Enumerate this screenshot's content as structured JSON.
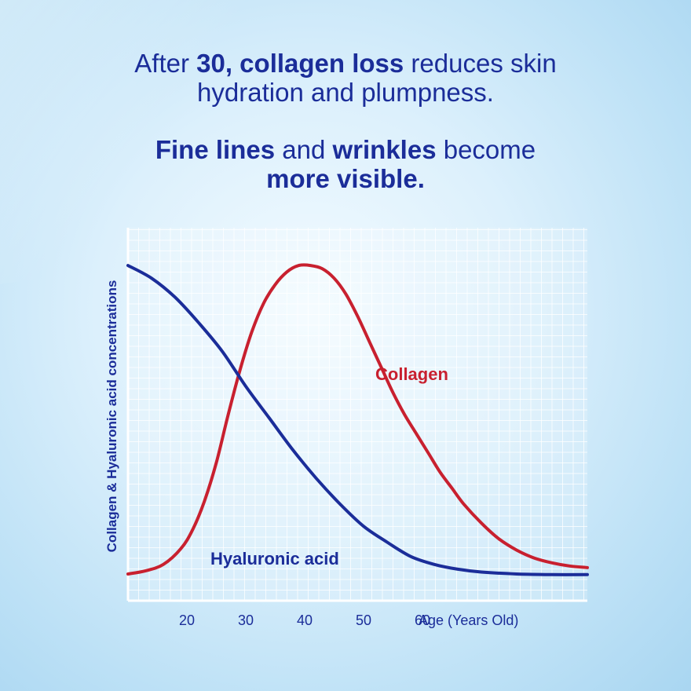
{
  "headline": {
    "line1": [
      "After ",
      "30, collagen loss",
      " reduces skin"
    ],
    "line2": "hydration and plumpness.",
    "line3": [
      "Fine lines",
      " and ",
      "wrinkles",
      " become"
    ],
    "line4": "more visible."
  },
  "colors": {
    "text": "#1b2d99",
    "collagen": "#c8202f",
    "hyaluronic": "#1b2d99",
    "grid": "#ffffff"
  },
  "chart_data": {
    "type": "line",
    "xlabel": "Age (Years Old)",
    "ylabel": "Collagen & Hyaluronic acid concentrations",
    "x_ticks": [
      20,
      30,
      40,
      50,
      60
    ],
    "xlim": [
      10,
      88
    ],
    "ylim": [
      0,
      100
    ],
    "grid": true,
    "series": [
      {
        "name": "Collagen",
        "label_at": [
          52,
          62
        ],
        "x": [
          10,
          13,
          16,
          19,
          21,
          23,
          25,
          27,
          29,
          31,
          33,
          35,
          37,
          39,
          41,
          43,
          45,
          47,
          49,
          51,
          53,
          55,
          57,
          59,
          61,
          63,
          65,
          67,
          70,
          73,
          76,
          79,
          82,
          85,
          88
        ],
        "y": [
          1,
          2,
          4,
          9,
          15,
          24,
          36,
          51,
          65,
          77,
          86,
          92,
          96,
          98,
          98,
          97,
          94,
          89,
          82,
          74,
          66,
          58,
          51,
          45,
          39,
          33,
          28,
          23,
          17,
          12,
          8.5,
          6,
          4.5,
          3.5,
          3
        ]
      },
      {
        "name": "Hyaluronic acid",
        "label_at": [
          24,
          4
        ],
        "x": [
          10,
          14,
          18,
          22,
          26,
          30,
          34,
          38,
          42,
          46,
          50,
          54,
          58,
          62,
          66,
          70,
          76,
          82,
          88
        ],
        "y": [
          98,
          94,
          88,
          80,
          71,
          60,
          50,
          40,
          31,
          23,
          16,
          11,
          6.5,
          4,
          2.5,
          1.6,
          1,
          0.8,
          0.8
        ]
      }
    ]
  }
}
